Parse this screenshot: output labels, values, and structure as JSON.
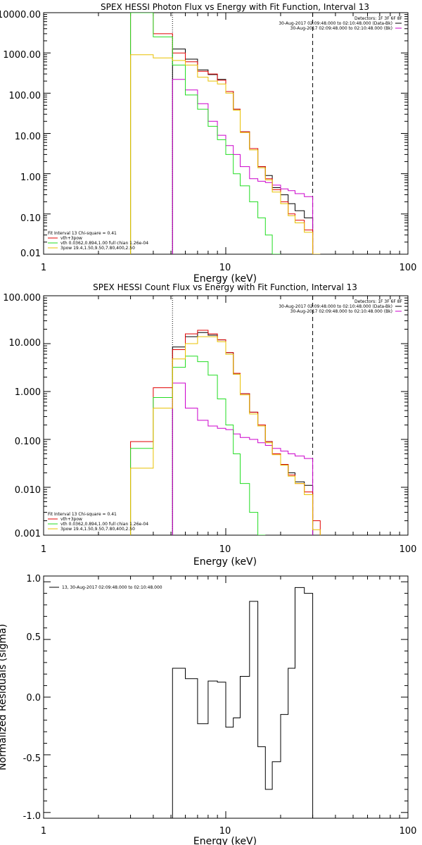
{
  "colors": {
    "black": "#000000",
    "red": "#e00000",
    "green": "#22dd22",
    "yellow": "#e8c000",
    "magenta": "#cc00cc"
  },
  "chart_data": [
    {
      "type": "line",
      "title": "SPEX HESSI Photon Flux vs Energy with Fit Function, Interval 13",
      "xlabel": "Energy (keV)",
      "ylabel": "",
      "xscale": "log",
      "yscale": "log",
      "xlim": [
        1,
        100
      ],
      "ylim": [
        0.01,
        10000
      ],
      "xticks": [
        "1",
        "10",
        "100"
      ],
      "yticks": [
        "0.01",
        "0.10",
        "1.00",
        "10.00",
        "100.00",
        "1000.00",
        "10000.00"
      ],
      "ytick_values": [
        0.01,
        0.1,
        1,
        10,
        100,
        1000,
        10000
      ],
      "vlines": [
        {
          "x": 5.1,
          "style": "dotted"
        },
        {
          "x": 30,
          "style": "dashed"
        }
      ],
      "legend_right": {
        "header": "Detectors: 1F 3F 6F 8F",
        "entries": [
          {
            "text": "30-Aug-2017 02:09:48.000 to 02:10:48.000 (Data-Bk)",
            "color": "black"
          },
          {
            "text": "30-Aug-2017 02:09:48.000 to 02:10:48.000 (Bk)",
            "color": "magenta"
          }
        ]
      },
      "legend_left": {
        "header": "Fit Interval 13    Chi-square = 0.41",
        "entries": [
          {
            "text": "vth+3pow",
            "color": "red"
          },
          {
            "text": "vth 0.0362,0.894,1.00  full chian 1.26e-04",
            "color": "green"
          },
          {
            "text": "3pow 19.4,1.50,9.50,7.80,400,2.50",
            "color": "yellow"
          }
        ]
      },
      "edges": [
        3,
        4,
        5.1,
        6,
        7,
        8,
        9,
        10,
        11,
        12,
        13.5,
        15,
        16.5,
        18,
        20,
        22,
        24,
        27,
        30,
        33
      ],
      "series": [
        {
          "name": "30-Aug-2017 02:09:48.000 to 02:10:48.000 (Data-Bk)",
          "color": "black",
          "start": 2,
          "values": [
            1250,
            700,
            380,
            290,
            220,
            110,
            40,
            11,
            4.2,
            1.5,
            0.9,
            0.45,
            0.3,
            0.18,
            0.12,
            0.08
          ]
        },
        {
          "name": "30-Aug-2017 02:09:48.000 to 02:10:48.000 (Bk)",
          "color": "magenta",
          "start": 2,
          "values": [
            220,
            120,
            55,
            20,
            9,
            5,
            3,
            1.5,
            0.75,
            0.65,
            0.6,
            0.52,
            0.42,
            0.38,
            0.32,
            0.27
          ]
        },
        {
          "name": "vth+3pow",
          "color": "red",
          "start": 0,
          "values": [
            10000,
            3000,
            1000,
            600,
            350,
            300,
            210,
            110,
            40,
            11,
            4.2,
            1.5,
            0.75,
            0.4,
            0.2,
            0.1,
            0.07,
            0.04,
            0.01
          ]
        },
        {
          "name": "vth 0.0362,0.894,1.00  full chian 1.26e-04",
          "color": "green",
          "start": 0,
          "values": [
            10000,
            2500,
            500,
            90,
            40,
            15,
            7,
            3,
            1,
            0.5,
            0.2,
            0.08,
            0.03,
            0.01
          ]
        },
        {
          "name": "3pow 19.4,1.50,9.50,7.80,400,2.50",
          "color": "yellow",
          "start": 0,
          "values": [
            900,
            750,
            650,
            500,
            250,
            200,
            170,
            100,
            38,
            10.5,
            3.9,
            1.4,
            0.7,
            0.35,
            0.18,
            0.09,
            0.06,
            0.035,
            0.01
          ]
        }
      ]
    },
    {
      "type": "line",
      "title": "SPEX HESSI Count Flux vs Energy with Fit Function, Interval 13",
      "xlabel": "Energy (keV)",
      "ylabel": "",
      "xscale": "log",
      "yscale": "log",
      "xlim": [
        1,
        100
      ],
      "ylim": [
        0.001,
        100
      ],
      "xticks": [
        "1",
        "10",
        "100"
      ],
      "yticks": [
        "0.001",
        "0.010",
        "0.100",
        "1.000",
        "10.000",
        "100.000"
      ],
      "ytick_values": [
        0.001,
        0.01,
        0.1,
        1,
        10,
        100
      ],
      "vlines": [
        {
          "x": 5.1,
          "style": "dotted"
        },
        {
          "x": 30,
          "style": "dashed"
        }
      ],
      "legend_right": {
        "header": "Detectors: 1F 3F 6F 8F",
        "entries": [
          {
            "text": "30-Aug-2017 02:09:48.000 to 02:10:48.000 (Data-Bk)",
            "color": "black"
          },
          {
            "text": "30-Aug-2017 02:09:48.000 to 02:10:48.000 (Bk)",
            "color": "magenta"
          }
        ]
      },
      "legend_left": {
        "header": "Fit Interval 13    Chi-square = 0.41",
        "entries": [
          {
            "text": "vth+3pow",
            "color": "red"
          },
          {
            "text": "vth 0.0362,0.894,1.00  full chian 1.26e-04",
            "color": "green"
          },
          {
            "text": "3pow 19.4,1.50,9.50,7.80,400,2.50",
            "color": "yellow"
          }
        ]
      },
      "edges": [
        3,
        4,
        5.1,
        6,
        7,
        8,
        9,
        10,
        11,
        12,
        13.5,
        15,
        16.5,
        18,
        20,
        22,
        24,
        27,
        30,
        33
      ],
      "series": [
        {
          "name": "30-Aug-2017 02:09:48.000 to 02:10:48.000 (Data-Bk)",
          "color": "black",
          "start": 2,
          "values": [
            8.5,
            14,
            17,
            15,
            12,
            6.5,
            2.3,
            0.9,
            0.37,
            0.2,
            0.09,
            0.05,
            0.03,
            0.02,
            0.013,
            0.011
          ]
        },
        {
          "name": "30-Aug-2017 02:09:48.000 to 02:10:48.000 (Bk)",
          "color": "magenta",
          "start": 2,
          "values": [
            1.5,
            0.45,
            0.25,
            0.19,
            0.17,
            0.16,
            0.13,
            0.11,
            0.1,
            0.085,
            0.075,
            0.065,
            0.057,
            0.05,
            0.045,
            0.04
          ]
        },
        {
          "name": "vth+3pow",
          "color": "red",
          "start": 0,
          "values": [
            0.09,
            1.2,
            7.5,
            16,
            19,
            16,
            12,
            6.5,
            2.4,
            0.9,
            0.37,
            0.2,
            0.09,
            0.05,
            0.03,
            0.018,
            0.012,
            0.008,
            0.002
          ]
        },
        {
          "name": "vth 0.0362,0.894,1.00  full chian 1.26e-04",
          "color": "green",
          "start": 0,
          "values": [
            0.065,
            0.75,
            3.2,
            5.5,
            4.2,
            2.2,
            0.7,
            0.2,
            0.05,
            0.012,
            0.003,
            0.001
          ]
        },
        {
          "name": "3pow 19.4,1.50,9.50,7.80,400,2.50",
          "color": "yellow",
          "start": 0,
          "values": [
            0.025,
            0.45,
            4.8,
            10,
            14,
            14,
            11,
            6,
            2.3,
            0.85,
            0.34,
            0.19,
            0.085,
            0.048,
            0.029,
            0.017,
            0.012,
            0.007,
            0.0013
          ]
        }
      ]
    },
    {
      "type": "line",
      "title": "",
      "xlabel": "Energy (keV)",
      "ylabel": "Normalized Residuals (sigma)",
      "xscale": "log",
      "yscale": "linear",
      "xlim": [
        1,
        100
      ],
      "ylim": [
        -1.05,
        1.05
      ],
      "xticks": [
        "1",
        "10",
        "100"
      ],
      "yticks": [
        "-1.0",
        "-0.5",
        "0.0",
        "0.5",
        "1.0"
      ],
      "ytick_values": [
        -1,
        -0.5,
        0,
        0.5,
        1
      ],
      "legend_right": {
        "header": "",
        "entries": []
      },
      "legend_left": {
        "header": "",
        "entries": [
          {
            "text": "13, 30-Aug-2017 02:09:48.000 to 02:10:48.000",
            "color": "black"
          }
        ]
      },
      "edges": [
        5.1,
        6,
        7,
        8,
        9,
        10,
        11,
        12,
        13.5,
        15,
        16.5,
        18,
        20,
        22,
        24,
        27,
        30
      ],
      "series": [
        {
          "name": "13, 30-Aug-2017 02:09:48.000 to 02:10:48.000",
          "color": "black",
          "start": 0,
          "values": [
            0.25,
            0.16,
            -0.23,
            0.14,
            0.13,
            -0.26,
            -0.18,
            0.18,
            0.83,
            -0.43,
            -0.8,
            -0.56,
            -0.15,
            0.25,
            0.95,
            0.9
          ]
        }
      ]
    }
  ]
}
